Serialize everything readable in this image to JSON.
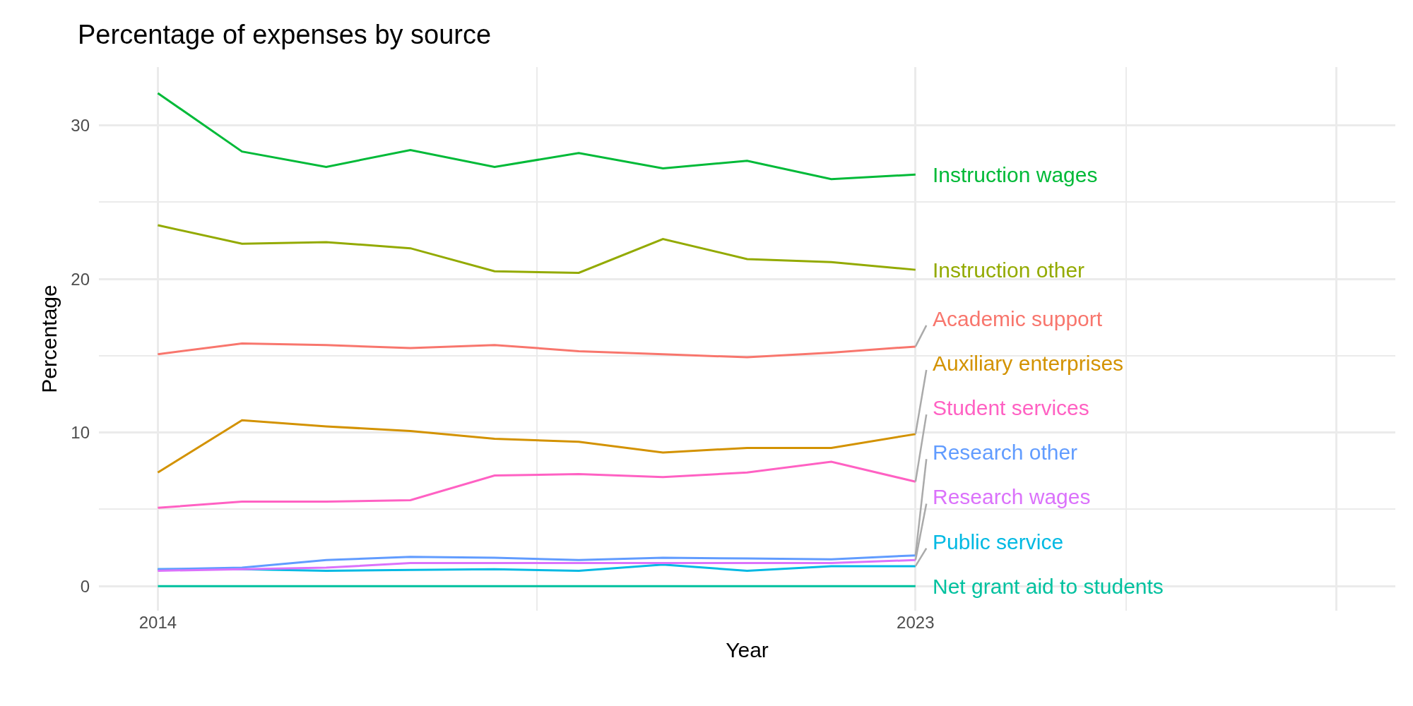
{
  "chart_data": {
    "type": "line",
    "title": "Percentage of expenses by source",
    "xlabel": "Year",
    "ylabel": "Percentage",
    "x": [
      2014,
      2015,
      2016,
      2017,
      2018,
      2019,
      2020,
      2021,
      2022,
      2023
    ],
    "xlim": [
      2013.3,
      2028.7
    ],
    "xticks": [
      2014,
      2023,
      {
        "value": 2028,
        "label": null
      }
    ],
    "ylim": [
      -1.6,
      33.8
    ],
    "yticks": [
      0,
      10,
      20,
      30
    ],
    "grid": true,
    "legend": false,
    "marker": "none",
    "line_style": "solid",
    "series": [
      {
        "name": "Academic support",
        "color": "#f8766d",
        "values": [
          15.1,
          15.8,
          15.7,
          15.5,
          15.7,
          15.3,
          15.1,
          14.9,
          15.2,
          15.6
        ]
      },
      {
        "name": "Auxiliary enterprises",
        "color": "#d39200",
        "values": [
          7.4,
          10.8,
          10.4,
          10.1,
          9.6,
          9.4,
          8.7,
          9.0,
          9.0,
          9.9
        ]
      },
      {
        "name": "Instruction other",
        "color": "#93aa00",
        "values": [
          23.5,
          22.3,
          22.4,
          22.0,
          20.5,
          20.4,
          22.6,
          21.3,
          21.1,
          20.6
        ]
      },
      {
        "name": "Instruction wages",
        "color": "#00ba38",
        "values": [
          32.1,
          28.3,
          27.3,
          28.4,
          27.3,
          28.2,
          27.2,
          27.7,
          26.5,
          26.8
        ]
      },
      {
        "name": "Net grant aid to students",
        "color": "#00c19f",
        "values": [
          0,
          0,
          0,
          0,
          0,
          0,
          0,
          0,
          0,
          0
        ]
      },
      {
        "name": "Public service",
        "color": "#00b9e3",
        "values": [
          1.1,
          1.1,
          1.0,
          1.05,
          1.1,
          1.0,
          1.4,
          1.0,
          1.3,
          1.3
        ]
      },
      {
        "name": "Research other",
        "color": "#619cff",
        "values": [
          1.1,
          1.2,
          1.7,
          1.9,
          1.85,
          1.7,
          1.85,
          1.8,
          1.75,
          2.0
        ]
      },
      {
        "name": "Research wages",
        "color": "#db72fb",
        "values": [
          1.0,
          1.1,
          1.2,
          1.5,
          1.5,
          1.5,
          1.5,
          1.5,
          1.5,
          1.7
        ]
      },
      {
        "name": "Student services",
        "color": "#ff61c3",
        "values": [
          5.1,
          5.5,
          5.5,
          5.6,
          7.2,
          7.3,
          7.1,
          7.4,
          8.1,
          6.8
        ]
      }
    ]
  }
}
